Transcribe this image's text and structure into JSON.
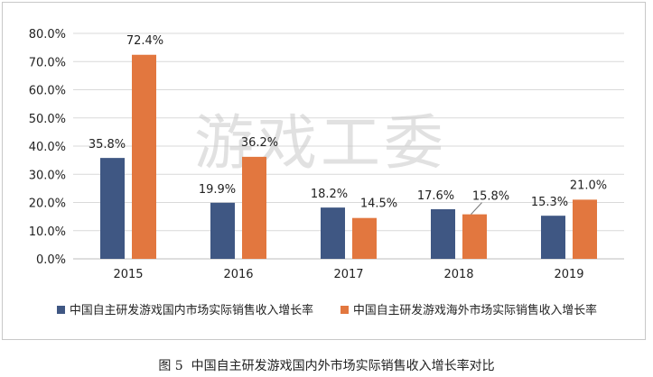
{
  "caption": {
    "figure_no": "图 5",
    "text": "中国自主研发游戏国内外市场实际销售收入增长率对比"
  },
  "watermark": "游戏工委",
  "chart_data": {
    "type": "bar",
    "categories": [
      "2015",
      "2016",
      "2017",
      "2018",
      "2019"
    ],
    "series": [
      {
        "name": "中国自主研发游戏国内市场实际销售收入增长率",
        "values": [
          35.8,
          19.9,
          18.2,
          17.6,
          15.3
        ],
        "labels": [
          "35.8%",
          "19.9%",
          "18.2%",
          "17.6%",
          "15.3%"
        ],
        "color": "#3f5783"
      },
      {
        "name": "中国自主研发游戏海外市场实际销售收入增长率",
        "values": [
          72.4,
          36.2,
          14.5,
          15.8,
          21.0
        ],
        "labels": [
          "72.4%",
          "36.2%",
          "14.5%",
          "15.8%",
          "21.0%"
        ],
        "color": "#e2773f"
      }
    ],
    "ylim": [
      0,
      80
    ],
    "yticks": [
      "0.0%",
      "10.0%",
      "20.0%",
      "30.0%",
      "40.0%",
      "50.0%",
      "60.0%",
      "70.0%",
      "80.0%"
    ],
    "grid": true,
    "legend": "bottom",
    "title": "",
    "xlabel": "",
    "ylabel": ""
  }
}
